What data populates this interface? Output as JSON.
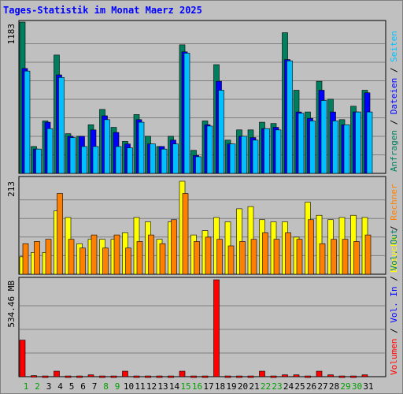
{
  "title": "Tages-Statistik im Monat Maerz 2025",
  "colors": {
    "title": "#0000ff",
    "anfragen": "#007f5f",
    "dateien": "#0000ff",
    "seiten": "#00c0ff",
    "besuche": "#ffff00",
    "rechner": "#ff8000",
    "volumen": "#ff0000",
    "weekend_label": "#00a000",
    "weekday_label": "#000000",
    "slash": "#000000",
    "volin": "#0000ff",
    "volout": "#007f5f"
  },
  "chart_data": [
    {
      "type": "bar",
      "title": "Tages-Statistik im Monat Maerz 2025",
      "ylabel_max": "1183",
      "ylim": [
        0,
        1183
      ],
      "categories": [
        "1",
        "2",
        "3",
        "4",
        "5",
        "6",
        "7",
        "8",
        "9",
        "10",
        "11",
        "12",
        "13",
        "14",
        "15",
        "16",
        "17",
        "18",
        "19",
        "20",
        "21",
        "22",
        "23",
        "24",
        "25",
        "26",
        "27",
        "28",
        "29",
        "30",
        "31"
      ],
      "weekend_days": [
        "1",
        "2",
        "8",
        "9",
        "15",
        "16",
        "22",
        "23",
        "29",
        "30"
      ],
      "legend": [
        "Anfragen",
        "Dateien",
        "Seiten"
      ],
      "series": [
        {
          "name": "Anfragen",
          "values": [
            1183,
            210,
            410,
            925,
            310,
            290,
            380,
            500,
            360,
            250,
            460,
            290,
            210,
            290,
            1005,
            180,
            410,
            850,
            260,
            340,
            340,
            400,
            390,
            1100,
            650,
            480,
            720,
            580,
            420,
            525,
            650
          ]
        },
        {
          "name": "Dateien",
          "values": [
            820,
            190,
            400,
            770,
            290,
            290,
            340,
            450,
            320,
            230,
            420,
            230,
            210,
            260,
            950,
            140,
            380,
            720,
            230,
            290,
            280,
            350,
            360,
            890,
            480,
            430,
            650,
            480,
            380,
            480,
            630
          ]
        },
        {
          "name": "Seiten",
          "values": [
            800,
            190,
            350,
            750,
            280,
            210,
            210,
            420,
            210,
            200,
            400,
            230,
            190,
            230,
            940,
            130,
            370,
            650,
            230,
            290,
            260,
            350,
            340,
            880,
            470,
            410,
            570,
            410,
            380,
            480,
            480
          ]
        }
      ]
    },
    {
      "type": "bar",
      "ylabel_max": "213",
      "ylim": [
        0,
        213
      ],
      "categories": [
        "1",
        "2",
        "3",
        "4",
        "5",
        "6",
        "7",
        "8",
        "9",
        "10",
        "11",
        "12",
        "13",
        "14",
        "15",
        "16",
        "17",
        "18",
        "19",
        "20",
        "21",
        "22",
        "23",
        "24",
        "25",
        "26",
        "27",
        "28",
        "29",
        "30",
        "31"
      ],
      "legend": [
        "Besuche",
        "Rechner"
      ],
      "series": [
        {
          "name": "Besuche",
          "values": [
            40,
            50,
            50,
            145,
            130,
            70,
            80,
            80,
            80,
            95,
            130,
            120,
            80,
            120,
            213,
            90,
            100,
            130,
            120,
            150,
            155,
            125,
            120,
            120,
            85,
            165,
            135,
            125,
            130,
            135,
            130
          ]
        },
        {
          "name": "Rechner",
          "values": [
            70,
            75,
            80,
            185,
            80,
            60,
            90,
            60,
            90,
            60,
            75,
            90,
            70,
            125,
            185,
            75,
            85,
            80,
            65,
            75,
            80,
            95,
            80,
            95,
            80,
            125,
            70,
            80,
            80,
            75,
            90
          ]
        }
      ]
    },
    {
      "type": "bar",
      "ylabel_max": "534.46 MB",
      "ylim": [
        0,
        534.46
      ],
      "categories": [
        "1",
        "2",
        "3",
        "4",
        "5",
        "6",
        "7",
        "8",
        "9",
        "10",
        "11",
        "12",
        "13",
        "14",
        "15",
        "16",
        "17",
        "18",
        "19",
        "20",
        "21",
        "22",
        "23",
        "24",
        "25",
        "26",
        "27",
        "28",
        "29",
        "30",
        "31"
      ],
      "legend": [
        "Volumen",
        "Vol. In",
        "Vol. Out"
      ],
      "series": [
        {
          "name": "Volumen",
          "values": [
            200,
            6,
            4,
            30,
            4,
            4,
            10,
            4,
            4,
            30,
            4,
            4,
            4,
            4,
            30,
            4,
            4,
            530,
            4,
            4,
            4,
            30,
            4,
            10,
            10,
            4,
            30,
            10,
            4,
            4,
            10
          ]
        }
      ]
    }
  ],
  "right_legend": {
    "top": [
      "Anfragen",
      "Dateien",
      "Seiten"
    ],
    "middle": [
      "Besuche",
      "Rechner"
    ],
    "bottom": [
      "Volumen",
      "Vol. In",
      "Vol. Out"
    ],
    "separator": "/"
  }
}
